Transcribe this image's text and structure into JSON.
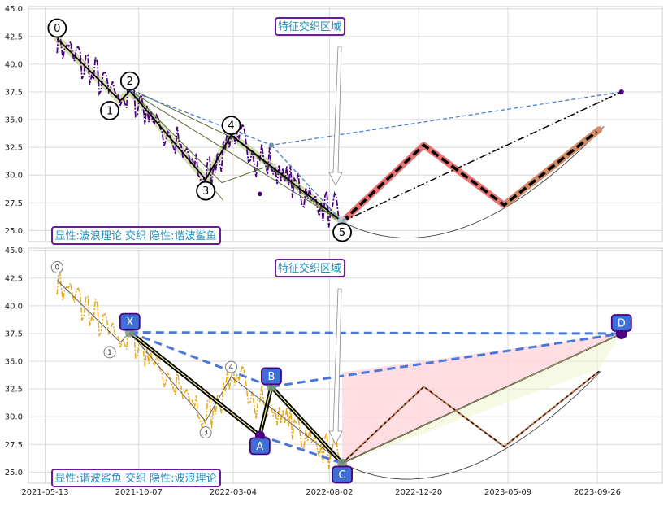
{
  "chart_data": [
    {
      "type": "line",
      "panel": "top",
      "title": "",
      "ylim": [
        24.0,
        45.2
      ],
      "yticks": [
        "25.0",
        "27.5",
        "30.0",
        "32.5",
        "35.0",
        "37.5",
        "40.0",
        "42.5",
        "45.0"
      ],
      "grid": true,
      "annotation_top": "特征交织区域",
      "annotation_bottom": "显性:波浪理论 交织 隐性:谐波鲨鱼",
      "price_color": "#4b0082",
      "wave_points": [
        {
          "label": "0",
          "date": "2021-06-01",
          "value": 42.3
        },
        {
          "label": "1",
          "date": "2021-09-08",
          "value": 36.7
        },
        {
          "label": "2",
          "date": "2021-09-23",
          "value": 37.6
        },
        {
          "label": "3",
          "date": "2022-01-20",
          "value": 29.6
        },
        {
          "label": "4",
          "date": "2022-03-01",
          "value": 33.6
        },
        {
          "label": "5",
          "date": "2022-08-22",
          "value": 25.8
        }
      ],
      "projection": [
        {
          "date": "2022-08-22",
          "value": 25.8
        },
        {
          "date": "2022-12-28",
          "value": 32.7
        },
        {
          "date": "2023-05-03",
          "value": 27.3
        },
        {
          "date": "2023-09-29",
          "value": 34.1
        }
      ],
      "target_point": {
        "date": "2023-11-03",
        "value": 37.5
      },
      "mid_point": {
        "date": "2022-05-03",
        "value": 32.7
      }
    },
    {
      "type": "line",
      "panel": "bottom",
      "title": "",
      "ylim": [
        24.0,
        45.2
      ],
      "yticks": [
        "25.0",
        "27.5",
        "30.0",
        "32.5",
        "35.0",
        "37.5",
        "40.0",
        "42.5",
        "45.0"
      ],
      "xticks": [
        "2021-05-13",
        "2021-10-07",
        "2022-03-04",
        "2022-08-02",
        "2022-12-20",
        "2023-05-09",
        "2023-09-26"
      ],
      "grid": true,
      "annotation_top": "特征交织区域",
      "annotation_bottom": "显性:谐波鲨鱼 交织 隐性:波浪理论",
      "price_color": "#e6a817",
      "harmonic_points": [
        {
          "label": "X",
          "date": "2021-09-23",
          "value": 37.6
        },
        {
          "label": "A",
          "date": "2022-04-15",
          "value": 28.3
        },
        {
          "label": "B",
          "date": "2022-05-03",
          "value": 32.7
        },
        {
          "label": "C",
          "date": "2022-08-22",
          "value": 25.8
        },
        {
          "label": "D",
          "date": "2023-11-03",
          "value": 37.5
        }
      ],
      "wave_labels": [
        "0",
        "1",
        "3",
        "4"
      ]
    }
  ]
}
